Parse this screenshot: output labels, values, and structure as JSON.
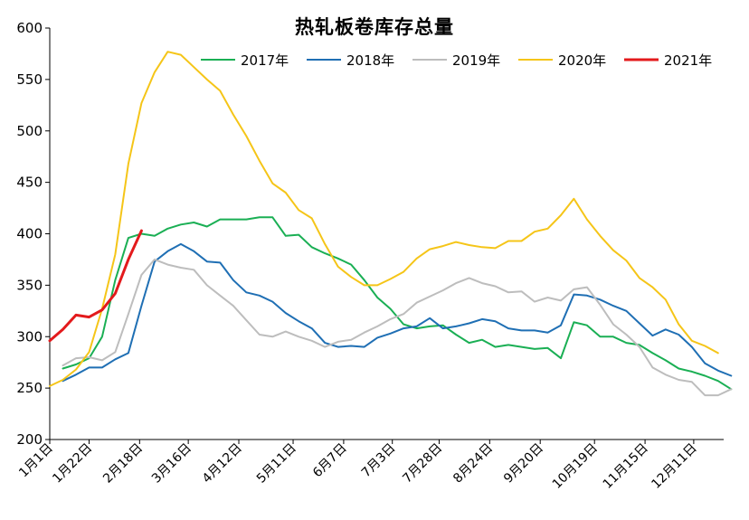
{
  "chart_data": {
    "type": "line",
    "title": "热轧板卷库存总量",
    "xlabel": "",
    "ylabel": "",
    "ylim": [
      200,
      600
    ],
    "yticks": [
      200,
      250,
      300,
      350,
      400,
      450,
      500,
      550,
      600
    ],
    "x_range_days": [
      0,
      360
    ],
    "xticks": [
      {
        "label": "1月1日",
        "day": 0
      },
      {
        "label": "1月22日",
        "day": 21
      },
      {
        "label": "2月18日",
        "day": 48
      },
      {
        "label": "3月16日",
        "day": 74
      },
      {
        "label": "4月12日",
        "day": 101
      },
      {
        "label": "5月11日",
        "day": 130
      },
      {
        "label": "6月7日",
        "day": 157
      },
      {
        "label": "7月3日",
        "day": 183
      },
      {
        "label": "7月28日",
        "day": 208
      },
      {
        "label": "8月24日",
        "day": 235
      },
      {
        "label": "9月20日",
        "day": 262
      },
      {
        "label": "10月19日",
        "day": 291
      },
      {
        "label": "11月15日",
        "day": 318
      },
      {
        "label": "12月11日",
        "day": 344
      }
    ],
    "legend_position": "top-right",
    "grid": false,
    "series": [
      {
        "name": "2017年",
        "color": "#1aaf54",
        "points": [
          [
            7,
            269
          ],
          [
            14,
            273
          ],
          [
            21,
            279
          ],
          [
            28,
            300
          ],
          [
            35,
            355
          ],
          [
            42,
            396
          ],
          [
            49,
            400
          ],
          [
            56,
            398
          ],
          [
            63,
            405
          ],
          [
            70,
            409
          ],
          [
            77,
            411
          ],
          [
            84,
            407
          ],
          [
            91,
            414
          ],
          [
            98,
            414
          ],
          [
            105,
            414
          ],
          [
            112,
            416
          ],
          [
            119,
            416
          ],
          [
            126,
            398
          ],
          [
            133,
            399
          ],
          [
            140,
            387
          ],
          [
            147,
            381
          ],
          [
            154,
            376
          ],
          [
            161,
            370
          ],
          [
            168,
            355
          ],
          [
            175,
            338
          ],
          [
            182,
            327
          ],
          [
            189,
            312
          ],
          [
            196,
            308
          ],
          [
            203,
            310
          ],
          [
            210,
            311
          ],
          [
            217,
            302
          ],
          [
            224,
            294
          ],
          [
            231,
            297
          ],
          [
            238,
            290
          ],
          [
            245,
            292
          ],
          [
            252,
            290
          ],
          [
            259,
            288
          ],
          [
            266,
            289
          ],
          [
            273,
            279
          ],
          [
            280,
            314
          ],
          [
            287,
            311
          ],
          [
            294,
            300
          ],
          [
            301,
            300
          ],
          [
            308,
            294
          ],
          [
            315,
            292
          ],
          [
            322,
            284
          ],
          [
            329,
            277
          ],
          [
            336,
            269
          ],
          [
            343,
            266
          ],
          [
            350,
            262
          ],
          [
            357,
            257
          ],
          [
            364,
            249
          ]
        ]
      },
      {
        "name": "2018年",
        "color": "#1f6fb4",
        "points": [
          [
            7,
            257
          ],
          [
            14,
            263
          ],
          [
            21,
            270
          ],
          [
            28,
            270
          ],
          [
            35,
            278
          ],
          [
            42,
            284
          ],
          [
            49,
            330
          ],
          [
            56,
            373
          ],
          [
            63,
            383
          ],
          [
            70,
            390
          ],
          [
            77,
            383
          ],
          [
            84,
            373
          ],
          [
            91,
            372
          ],
          [
            98,
            355
          ],
          [
            105,
            343
          ],
          [
            112,
            340
          ],
          [
            119,
            334
          ],
          [
            126,
            323
          ],
          [
            133,
            315
          ],
          [
            140,
            308
          ],
          [
            147,
            294
          ],
          [
            154,
            290
          ],
          [
            161,
            291
          ],
          [
            168,
            290
          ],
          [
            175,
            299
          ],
          [
            182,
            303
          ],
          [
            189,
            308
          ],
          [
            196,
            310
          ],
          [
            203,
            318
          ],
          [
            210,
            308
          ],
          [
            217,
            310
          ],
          [
            224,
            313
          ],
          [
            231,
            317
          ],
          [
            238,
            315
          ],
          [
            245,
            308
          ],
          [
            252,
            306
          ],
          [
            259,
            306
          ],
          [
            266,
            304
          ],
          [
            273,
            311
          ],
          [
            280,
            341
          ],
          [
            287,
            340
          ],
          [
            294,
            336
          ],
          [
            301,
            330
          ],
          [
            308,
            325
          ],
          [
            315,
            313
          ],
          [
            322,
            301
          ],
          [
            329,
            307
          ],
          [
            336,
            302
          ],
          [
            343,
            290
          ],
          [
            350,
            274
          ],
          [
            357,
            267
          ],
          [
            364,
            262
          ]
        ]
      },
      {
        "name": "2019年",
        "color": "#bdbdbd",
        "points": [
          [
            7,
            272
          ],
          [
            14,
            279
          ],
          [
            21,
            280
          ],
          [
            28,
            277
          ],
          [
            35,
            285
          ],
          [
            42,
            322
          ],
          [
            49,
            360
          ],
          [
            56,
            375
          ],
          [
            63,
            370
          ],
          [
            70,
            367
          ],
          [
            77,
            365
          ],
          [
            84,
            350
          ],
          [
            91,
            340
          ],
          [
            98,
            330
          ],
          [
            105,
            316
          ],
          [
            112,
            302
          ],
          [
            119,
            300
          ],
          [
            126,
            305
          ],
          [
            133,
            300
          ],
          [
            140,
            296
          ],
          [
            147,
            290
          ],
          [
            154,
            295
          ],
          [
            161,
            297
          ],
          [
            168,
            304
          ],
          [
            175,
            310
          ],
          [
            182,
            317
          ],
          [
            189,
            322
          ],
          [
            196,
            333
          ],
          [
            203,
            339
          ],
          [
            210,
            345
          ],
          [
            217,
            352
          ],
          [
            224,
            357
          ],
          [
            231,
            352
          ],
          [
            238,
            349
          ],
          [
            245,
            343
          ],
          [
            252,
            344
          ],
          [
            259,
            334
          ],
          [
            266,
            338
          ],
          [
            273,
            335
          ],
          [
            280,
            346
          ],
          [
            287,
            348
          ],
          [
            294,
            331
          ],
          [
            301,
            312
          ],
          [
            308,
            302
          ],
          [
            315,
            290
          ],
          [
            322,
            270
          ],
          [
            329,
            263
          ],
          [
            336,
            258
          ],
          [
            343,
            256
          ],
          [
            350,
            243
          ],
          [
            357,
            243
          ],
          [
            364,
            249
          ]
        ]
      },
      {
        "name": "2020年",
        "color": "#f5c518",
        "points": [
          [
            0,
            252
          ],
          [
            7,
            258
          ],
          [
            14,
            268
          ],
          [
            21,
            285
          ],
          [
            28,
            327
          ],
          [
            35,
            380
          ],
          [
            42,
            468
          ],
          [
            49,
            527
          ],
          [
            56,
            557
          ],
          [
            63,
            577
          ],
          [
            70,
            574
          ],
          [
            77,
            562
          ],
          [
            84,
            550
          ],
          [
            91,
            539
          ],
          [
            98,
            516
          ],
          [
            105,
            495
          ],
          [
            112,
            471
          ],
          [
            119,
            449
          ],
          [
            126,
            440
          ],
          [
            133,
            423
          ],
          [
            140,
            415
          ],
          [
            147,
            390
          ],
          [
            154,
            368
          ],
          [
            161,
            358
          ],
          [
            168,
            350
          ],
          [
            175,
            350
          ],
          [
            182,
            356
          ],
          [
            189,
            363
          ],
          [
            196,
            376
          ],
          [
            203,
            385
          ],
          [
            210,
            388
          ],
          [
            217,
            392
          ],
          [
            224,
            389
          ],
          [
            231,
            387
          ],
          [
            238,
            386
          ],
          [
            245,
            393
          ],
          [
            252,
            393
          ],
          [
            259,
            402
          ],
          [
            266,
            405
          ],
          [
            273,
            418
          ],
          [
            280,
            434
          ],
          [
            287,
            414
          ],
          [
            294,
            398
          ],
          [
            301,
            384
          ],
          [
            308,
            374
          ],
          [
            315,
            357
          ],
          [
            322,
            348
          ],
          [
            329,
            336
          ],
          [
            336,
            312
          ],
          [
            343,
            296
          ],
          [
            350,
            291
          ],
          [
            357,
            284
          ]
        ]
      },
      {
        "name": "2021年",
        "color": "#e31a1c",
        "points": [
          [
            0,
            296
          ],
          [
            7,
            307
          ],
          [
            14,
            321
          ],
          [
            21,
            319
          ],
          [
            28,
            326
          ],
          [
            35,
            342
          ],
          [
            42,
            375
          ],
          [
            49,
            403
          ]
        ]
      }
    ]
  }
}
